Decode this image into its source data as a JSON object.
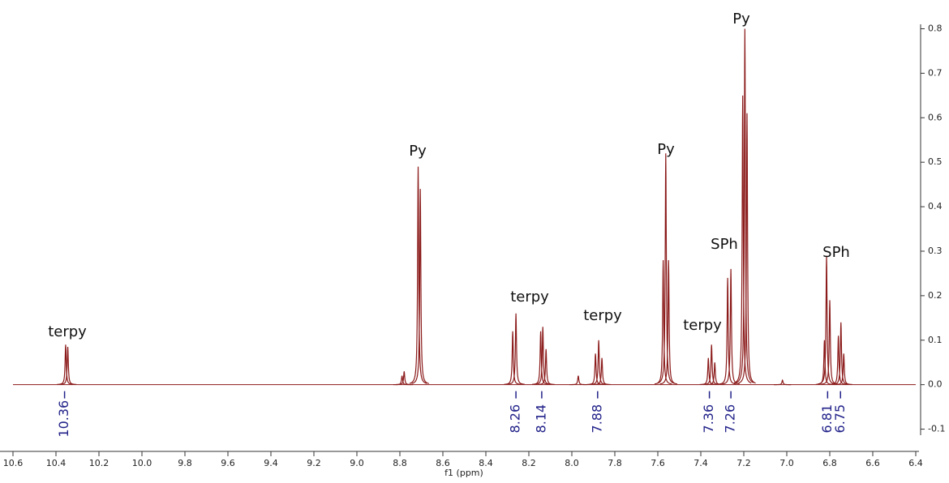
{
  "chart_data": {
    "type": "spectrum",
    "x": [
      10.355,
      10.345,
      8.79,
      8.78,
      8.715,
      8.705,
      8.275,
      8.26,
      8.145,
      8.135,
      8.12,
      7.97,
      7.89,
      7.875,
      7.86,
      7.575,
      7.563,
      7.55,
      7.365,
      7.35,
      7.335,
      7.275,
      7.26,
      7.205,
      7.195,
      7.185,
      7.02,
      6.825,
      6.815,
      6.8,
      6.76,
      6.748,
      6.735
    ],
    "values": [
      0.09,
      0.085,
      0.02,
      0.03,
      0.49,
      0.44,
      0.12,
      0.16,
      0.12,
      0.13,
      0.08,
      0.02,
      0.07,
      0.1,
      0.06,
      0.28,
      0.52,
      0.28,
      0.06,
      0.09,
      0.05,
      0.24,
      0.26,
      0.65,
      0.8,
      0.61,
      0.01,
      0.1,
      0.29,
      0.19,
      0.11,
      0.14,
      0.07
    ],
    "color": "#8b1a1a",
    "xlabel": "f1 (ppm)",
    "xlim": [
      10.6,
      6.4
    ],
    "xticks": [
      10.6,
      10.4,
      10.2,
      {
        "value": 10,
        "label": "10.0"
      },
      9.8,
      9.6,
      9.4,
      9.2,
      {
        "value": 9,
        "label": "9.0"
      },
      8.8,
      8.6,
      8.4,
      8.2,
      {
        "value": 8,
        "label": "8.0"
      },
      7.8,
      7.6,
      7.4,
      7.2,
      {
        "value": 7,
        "label": "7.0"
      },
      6.8,
      6.6,
      6.4
    ],
    "ylim": [
      -0.15,
      0.81
    ],
    "yticks": [
      0.8,
      0.7,
      0.6,
      0.5,
      0.4,
      0.3,
      0.2,
      0.1,
      {
        "value": 0,
        "label": "0.0"
      },
      -0.1
    ],
    "annotations": [
      "terpy",
      "Py",
      "terpy",
      "terpy",
      "Py",
      "terpy",
      "SPh",
      "Py",
      "SPh"
    ],
    "peak_labels": [
      10.36,
      8.26,
      8.14,
      7.88,
      7.36,
      7.26,
      6.81,
      6.75
    ],
    "peak_label_color": "#22228a"
  }
}
